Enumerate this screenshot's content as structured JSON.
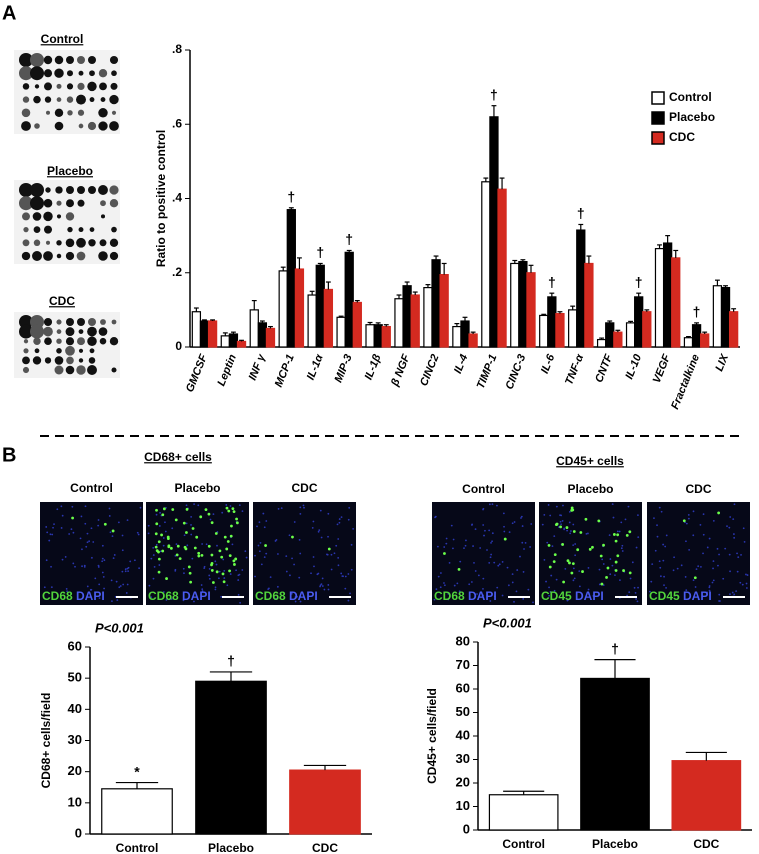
{
  "panel_labels": [
    "A",
    "B"
  ],
  "blots": [
    "Control",
    "Placebo",
    "CDC"
  ],
  "micrographs": [
    {
      "title": "CD68+ cells",
      "columns": [
        "Control",
        "Placebo",
        "CDC"
      ],
      "stains": [
        [
          "CD68",
          "DAPI"
        ],
        [
          "CD68",
          "DAPI"
        ],
        [
          "CD68",
          "DAPI"
        ]
      ]
    },
    {
      "title": "CD45+ cells",
      "columns": [
        "Control",
        "Placebo",
        "CDC"
      ],
      "stains": [
        [
          "CD68",
          "DAPI"
        ],
        [
          "CD45",
          "DAPI"
        ],
        [
          "CD45",
          "DAPI"
        ]
      ]
    }
  ],
  "chart_data": [
    {
      "type": "bar",
      "ylabel": "Ratio to positive control",
      "categories": [
        "GMCSF",
        "Leptin",
        "INF γ",
        "MCP-1",
        "IL-1α",
        "MIP-3",
        "IL-1β",
        "β NGF",
        "CINC2",
        "IL-4",
        "TIMP-1",
        "CINC-3",
        "IL-6",
        "TNF-α",
        "CNTF",
        "IL-10",
        "VEGF",
        "Fractalkine",
        "LIX"
      ],
      "series": [
        {
          "name": "Control",
          "color": "#ffffff",
          "values": [
            0.095,
            0.03,
            0.1,
            0.205,
            0.14,
            0.08,
            0.06,
            0.13,
            0.16,
            0.055,
            0.445,
            0.225,
            0.085,
            0.1,
            0.02,
            0.065,
            0.265,
            0.025,
            0.165
          ],
          "errors": [
            0.01,
            0.008,
            0.025,
            0.01,
            0.01,
            0.003,
            0.006,
            0.01,
            0.008,
            0.008,
            0.01,
            0.008,
            0.003,
            0.01,
            0.004,
            0.004,
            0.01,
            0.003,
            0.015
          ]
        },
        {
          "name": "Placebo",
          "color": "#000000",
          "values": [
            0.07,
            0.035,
            0.065,
            0.37,
            0.22,
            0.255,
            0.06,
            0.165,
            0.235,
            0.07,
            0.62,
            0.23,
            0.135,
            0.315,
            0.065,
            0.135,
            0.28,
            0.06,
            0.16
          ],
          "errors": [
            0.003,
            0.005,
            0.005,
            0.005,
            0.005,
            0.005,
            0.005,
            0.01,
            0.01,
            0.01,
            0.03,
            0.005,
            0.01,
            0.015,
            0.005,
            0.01,
            0.02,
            0.005,
            0.005
          ]
        },
        {
          "name": "CDC",
          "color": "#d42a20",
          "values": [
            0.07,
            0.015,
            0.05,
            0.21,
            0.155,
            0.12,
            0.055,
            0.14,
            0.195,
            0.035,
            0.425,
            0.2,
            0.09,
            0.225,
            0.04,
            0.095,
            0.24,
            0.035,
            0.095
          ],
          "errors": [
            0.003,
            0.003,
            0.005,
            0.03,
            0.02,
            0.005,
            0.005,
            0.008,
            0.03,
            0.005,
            0.03,
            0.02,
            0.005,
            0.02,
            0.005,
            0.005,
            0.02,
            0.005,
            0.008
          ]
        }
      ],
      "ylim": [
        0,
        0.8
      ],
      "yticks": [
        0,
        {
          "value": 0.2,
          "label": ".2"
        },
        {
          "value": 0.4,
          "label": ".4"
        },
        {
          "value": 0.6,
          "label": ".6"
        },
        {
          "value": 0.8,
          "label": ".8"
        }
      ],
      "legend": "upper right",
      "annotations": [
        {
          "text": "†",
          "category": "MCP-1"
        },
        {
          "text": "†",
          "category": "IL-1α"
        },
        {
          "text": "†",
          "category": "MIP-3"
        },
        {
          "text": "†",
          "category": "TIMP-1"
        },
        {
          "text": "†",
          "category": "IL-6"
        },
        {
          "text": "†",
          "category": "TNF-α"
        },
        {
          "text": "†",
          "category": "IL-10"
        },
        {
          "text": "†",
          "category": "Fractalkine"
        }
      ]
    },
    {
      "type": "bar",
      "subtitle": "P<0.001",
      "ylabel": "CD68+ cells/field",
      "categories": [
        "Control",
        "Placebo",
        "CDC"
      ],
      "values": [
        14.5,
        49,
        20.5
      ],
      "errors": [
        2,
        3,
        1.5
      ],
      "colors": [
        "#ffffff",
        "#000000",
        "#d42a20"
      ],
      "ylim": [
        0,
        60
      ],
      "yticks": [
        0,
        10,
        20,
        30,
        40,
        50,
        60
      ],
      "annotations": [
        {
          "text": "*",
          "category": "Control"
        },
        {
          "text": "†",
          "category": "Placebo"
        }
      ]
    },
    {
      "type": "bar",
      "subtitle": "P<0.001",
      "ylabel": "CD45+ cells/field",
      "categories": [
        "Control",
        "Placebo",
        "CDC"
      ],
      "values": [
        15,
        64.5,
        29.5
      ],
      "errors": [
        1.5,
        8,
        3.5
      ],
      "colors": [
        "#ffffff",
        "#000000",
        "#d42a20"
      ],
      "ylim": [
        0,
        80
      ],
      "yticks": [
        0,
        10,
        20,
        30,
        40,
        50,
        60,
        70,
        80
      ],
      "annotations": [
        {
          "text": "†",
          "category": "Placebo"
        }
      ]
    }
  ]
}
